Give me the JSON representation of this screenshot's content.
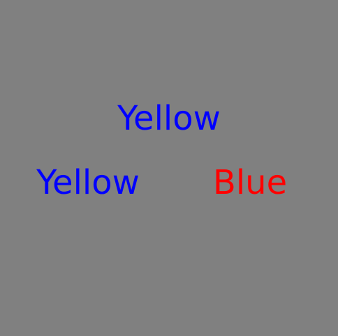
{
  "background_color": "#808080",
  "words": [
    {
      "text": "Yellow",
      "color": "#0000FF"
    },
    {
      "text": "Yellow",
      "color": "#0000FF"
    },
    {
      "text": "Blue",
      "color": "#FF0000"
    }
  ]
}
